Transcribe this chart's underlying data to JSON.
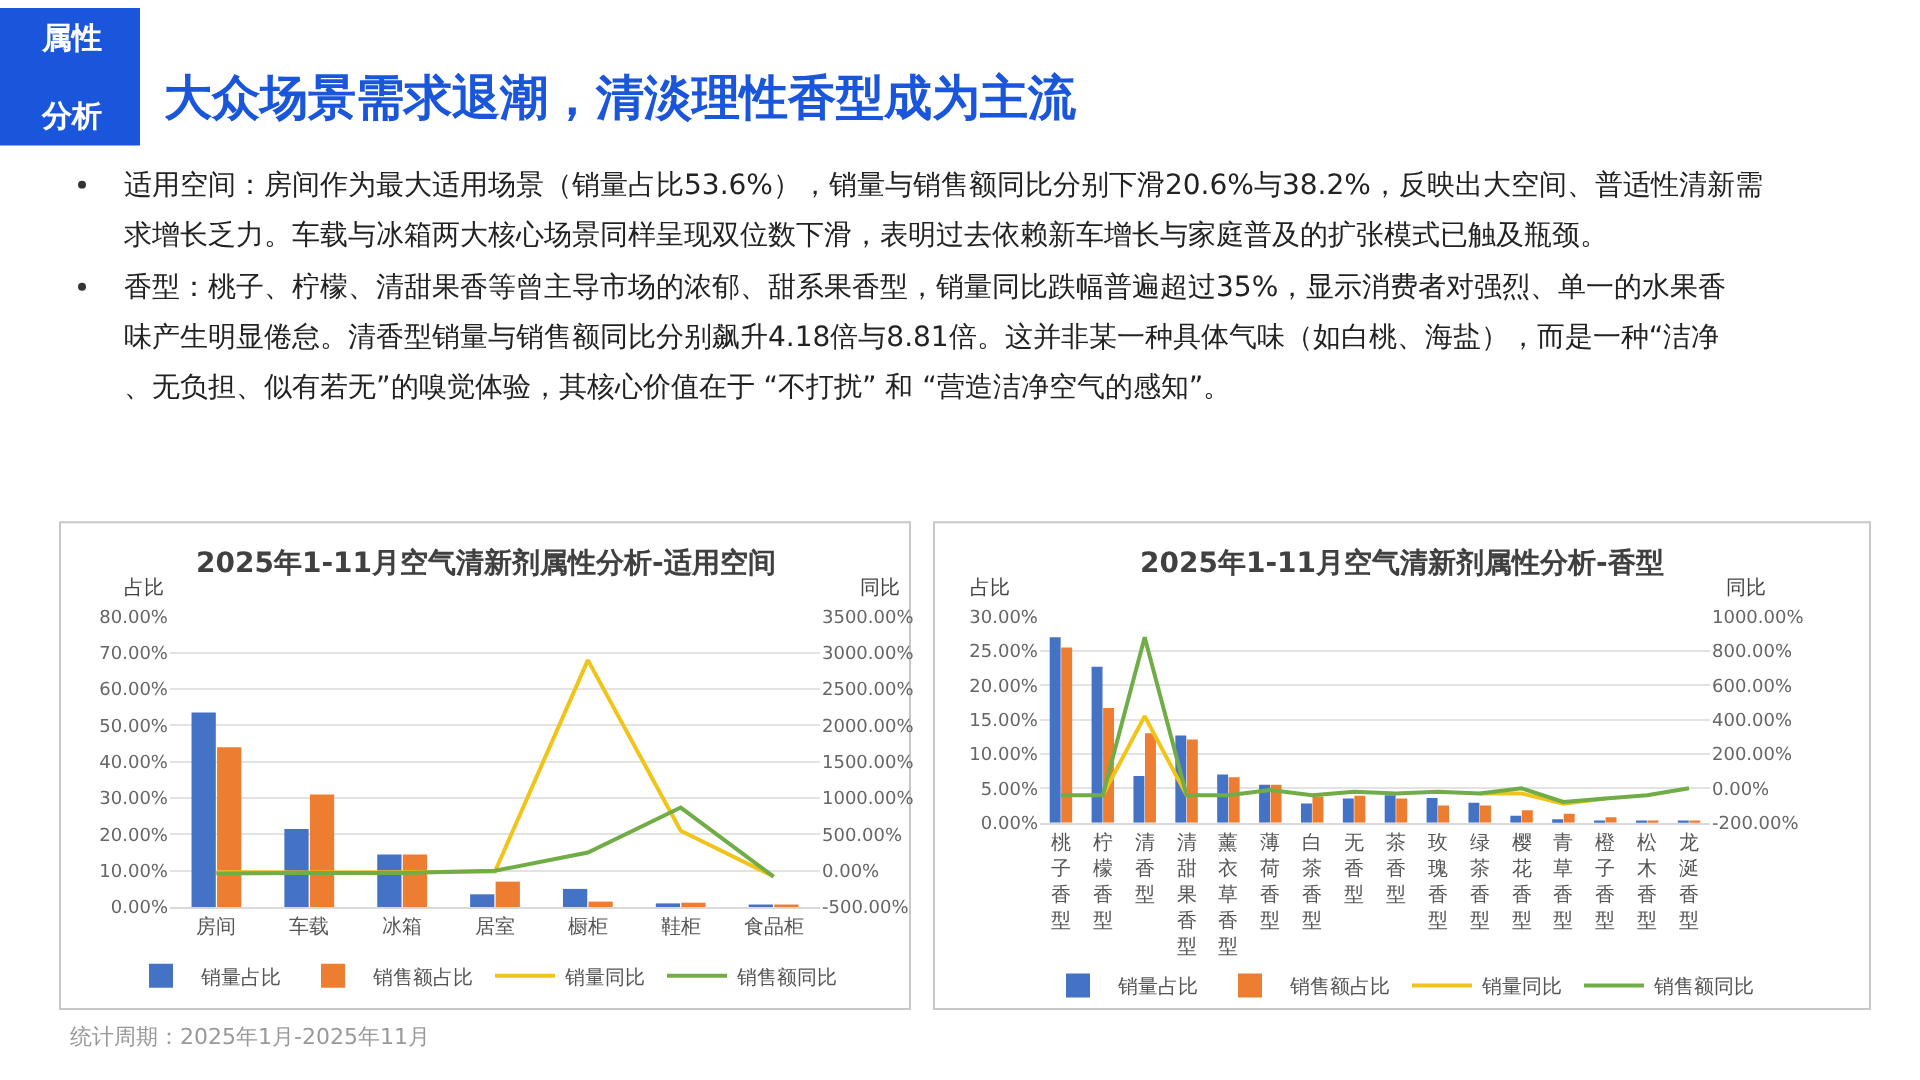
{
  "chart_data": [
    {
      "type": "other",
      "title": "大众场景需求退潮，清淡理性香型成为主流",
      "annotations": [
        "属性分析",
        "适用空间：房间作为最大适用场景（销量占比53.6%），销量与销售额同比分别下滑20.6%与38.2%，反映出大空间、普适性清新需求增长乏力。车载与冰箱两大核心场景同样呈现双位数下滑，表明过去依赖新车增长与家庭普及的扩张模式已触及瓶颈。",
        "香型：桃子、柠檬、清甜果香等曾主导市场的浓郁、甜系果香型，销量同比跌幅普遍超过35%，显示消费者对强烈、单一的水果香味产生明显倦怠。清香型销量与销售额同比分别飙升4.18倍与8.81倍。这并非某一种具体气味（如白桃、海盐），而是一种“洁净、无负担、似有若无”的嗅觉体验，其核心价值在于 “不打扰” 和 “营造洁净空气的感知”。",
        "统计周期：2025年1月-2025年11月"
      ]
    },
    {
      "type": "bar",
      "title": "2025年1-11月空气清新剂属性分析-适用空间",
      "ylabel": "占比",
      "y2label": "同比",
      "categories": [
        "房间",
        "车载",
        "冰箱",
        "居室",
        "橱柜",
        "鞋柜",
        "食品柜"
      ],
      "series": [
        {
          "name": "销量占比",
          "color": "#4472c4",
          "values": [
            53.6,
            21.5,
            14.5,
            3.5,
            5.0,
            1.0,
            0.3
          ]
        },
        {
          "name": "销售额占比",
          "color": "#ed7d31",
          "values": [
            44.0,
            31.0,
            14.5,
            7.0,
            1.5,
            1.2,
            0.2
          ]
        },
        {
          "name": "销量同比",
          "color": "#f0c419",
          "type": "line",
          "axis": "y2",
          "values": [
            -20,
            -25,
            -20,
            -10,
            2900,
            550,
            -80
          ]
        },
        {
          "name": "销售额同比",
          "color": "#70ad47",
          "type": "line",
          "axis": "y2",
          "values": [
            -40,
            -30,
            -30,
            0,
            250,
            870,
            -80
          ]
        }
      ],
      "ylim": [
        0,
        80
      ],
      "yticks": [
        {
          "value": 0,
          "label": "0.00%"
        },
        {
          "value": 10,
          "label": "10.00%"
        },
        {
          "value": 20,
          "label": "20.00%"
        },
        {
          "value": 30,
          "label": "30.00%"
        },
        {
          "value": 40,
          "label": "40.00%"
        },
        {
          "value": 50,
          "label": "50.00%"
        },
        {
          "value": 60,
          "label": "60.00%"
        },
        {
          "value": 70,
          "label": "70.00%"
        },
        {
          "value": 80,
          "label": "80.00%"
        }
      ],
      "y2lim": [
        -500,
        3500
      ],
      "y2ticks": [
        {
          "value": -500,
          "label": "-500.00%"
        },
        {
          "value": 0,
          "label": "0.00%"
        },
        {
          "value": 500,
          "label": "500.00%"
        },
        {
          "value": 1000,
          "label": "1000.00%"
        },
        {
          "value": 1500,
          "label": "1500.00%"
        },
        {
          "value": 2000,
          "label": "2000.00%"
        },
        {
          "value": 2500,
          "label": "2500.00%"
        },
        {
          "value": 3000,
          "label": "3000.00%"
        },
        {
          "value": 3500,
          "label": "3500.00%"
        }
      ],
      "grid": "y",
      "legend": "bottom",
      "marker": "none",
      "line_style": "solid"
    },
    {
      "type": "bar",
      "title": "2025年1-11月空气清新剂属性分析-香型",
      "ylabel": "占比",
      "y2label": "同比",
      "categories": [
        "桃子香型",
        "柠檬香型",
        "清香型",
        "清甜果香型",
        "薰衣草香型",
        "薄荷香型",
        "白茶香型",
        "无香型",
        "茶香型",
        "玫瑰香型",
        "绿茶香型",
        "樱花香型",
        "青草香型",
        "橙子香型",
        "松木香型",
        "龙涎香型"
      ],
      "series": [
        {
          "name": "销量占比",
          "color": "#4472c4",
          "values": [
            27.0,
            22.7,
            6.8,
            12.7,
            7.0,
            5.5,
            2.8,
            3.5,
            4.0,
            3.6,
            2.9,
            1.0,
            0.5,
            0.3,
            0.1,
            0.1
          ]
        },
        {
          "name": "销售额占比",
          "color": "#ed7d31",
          "values": [
            25.5,
            16.7,
            13.0,
            12.1,
            6.6,
            5.5,
            3.8,
            3.9,
            3.5,
            2.5,
            2.5,
            1.8,
            1.3,
            0.8,
            0.1,
            0.1
          ]
        },
        {
          "name": "销量同比",
          "color": "#f0c419",
          "type": "line",
          "axis": "y2",
          "values": [
            null,
            -40,
            420,
            -40,
            null,
            null,
            null,
            null,
            null,
            null,
            -30,
            -30,
            -90,
            -60,
            null,
            null
          ]
        },
        {
          "name": "销售额同比",
          "color": "#70ad47",
          "type": "line",
          "axis": "y2",
          "values": [
            -40,
            -40,
            880,
            -40,
            -40,
            -10,
            -40,
            -20,
            -30,
            -20,
            -30,
            0,
            -80,
            -60,
            -40,
            0
          ]
        }
      ],
      "ylim": [
        0,
        30
      ],
      "yticks": [
        {
          "value": 0,
          "label": "0.00%"
        },
        {
          "value": 5,
          "label": "5.00%"
        },
        {
          "value": 10,
          "label": "10.00%"
        },
        {
          "value": 15,
          "label": "15.00%"
        },
        {
          "value": 20,
          "label": "20.00%"
        },
        {
          "value": 25,
          "label": "25.00%"
        },
        {
          "value": 30,
          "label": "30.00%"
        }
      ],
      "y2lim": [
        -200,
        1000
      ],
      "y2ticks": [
        {
          "value": -200,
          "label": "-200.00%"
        },
        {
          "value": 0,
          "label": "0.00%"
        },
        {
          "value": 200,
          "label": "200.00%"
        },
        {
          "value": 400,
          "label": "400.00%"
        },
        {
          "value": 600,
          "label": "600.00%"
        },
        {
          "value": 800,
          "label": "800.00%"
        },
        {
          "value": 1000,
          "label": "1000.00%"
        }
      ],
      "grid": "y",
      "legend": "bottom",
      "marker": "none",
      "line_style": "solid"
    }
  ]
}
